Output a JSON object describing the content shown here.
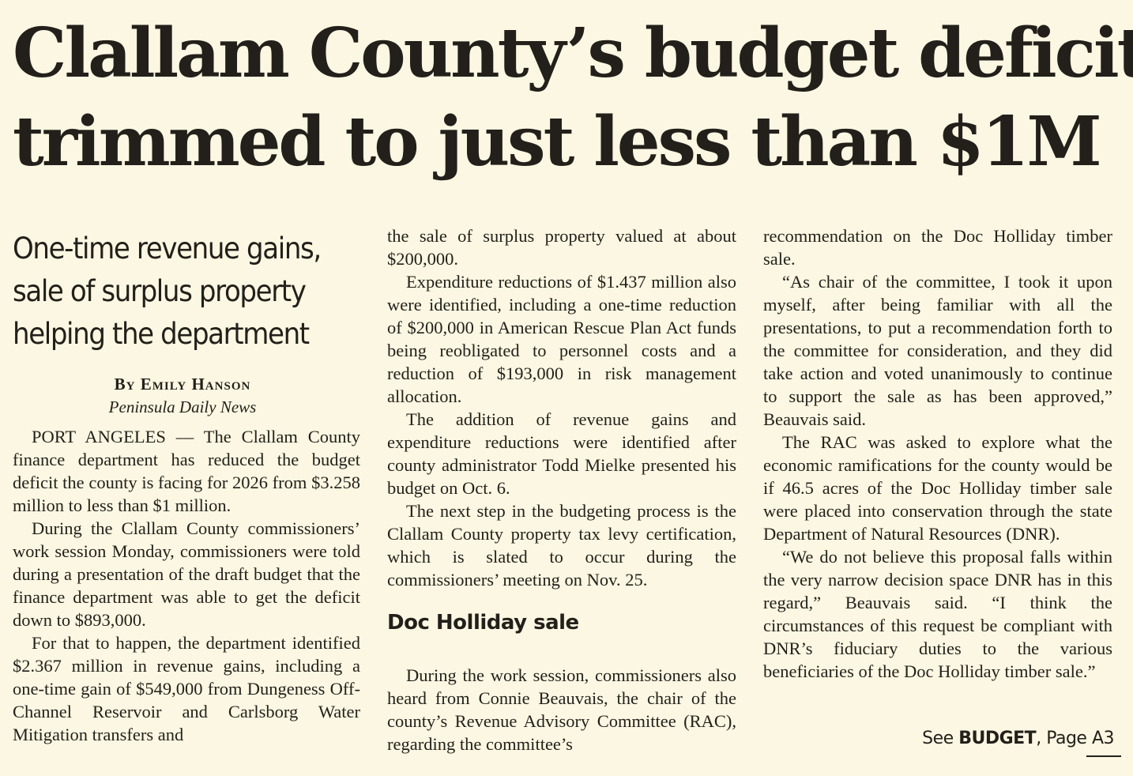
{
  "headline": {
    "line1": "Clallam County’s budget deficit",
    "line2": "trimmed to just less than $1M"
  },
  "deck": {
    "line1": "One-time revenue gains,",
    "line2": "sale of surplus property",
    "line3": "helping the department"
  },
  "byline": "By Emily Hanson",
  "outlet": "Peninsula Daily News",
  "col1": {
    "p1": "PORT ANGELES — The Clallam County finance department has reduced the budget deficit the county is facing for 2026 from $3.258 million to less than $1 million.",
    "p2": "During the Clallam County commissioners’ work session Monday, commissioners were told during a presentation of the draft budget that the finance department was able to get the deficit down to $893,000.",
    "p3": "For that to happen, the department identified $2.367 million in revenue gains, including a one-time gain of $549,000 from Dungeness Off-Channel Reservoir and Carlsborg Water Mitigation transfers and"
  },
  "col2": {
    "p1": "the sale of surplus property valued at about $200,000.",
    "p2": "Expenditure reductions of $1.437 million also were identified, including a one-time reduction of $200,000 in American Rescue Plan Act funds being reobligated to personnel costs and a reduction of $193,000 in risk management allocation.",
    "p3": "The addition of revenue gains and expenditure reductions were identified after county administrator Todd Mielke presented his budget on Oct. 6.",
    "p4": "The next step in the budgeting process is the Clallam County property tax levy certification, which is slated to occur during the commissioners’ meeting on Nov. 25.",
    "subhead": "Doc Holliday sale",
    "p5": "During the work session, commissioners also heard from Connie Beauvais, the chair of the county’s Revenue Advisory Committee (RAC), regarding the committee’s"
  },
  "col3": {
    "p1": "recommendation on the Doc Holliday timber sale.",
    "p2": "“As chair of the committee, I took it upon myself, after being familiar with all the presentations, to put a recommendation forth to the committee for consideration, and they did take action and voted unanimously to continue to support the sale as has been approved,” Beauvais said.",
    "p3": "The RAC was asked to explore what the economic ramifications for the county would be if 46.5 acres of the Doc Holliday timber sale were placed into conservation through the state Department of Natural Resources (DNR).",
    "p4": "“We do not believe this proposal falls within the very narrow decision space DNR has in this regard,” Beauvais said. “I think the circumstances of this request be compliant with DNR’s fiduciary duties to the various beneficiaries of the Doc Holliday timber sale.”"
  },
  "jump": {
    "see": "See ",
    "keyword": "BUDGET",
    "page": ", Page A3"
  }
}
